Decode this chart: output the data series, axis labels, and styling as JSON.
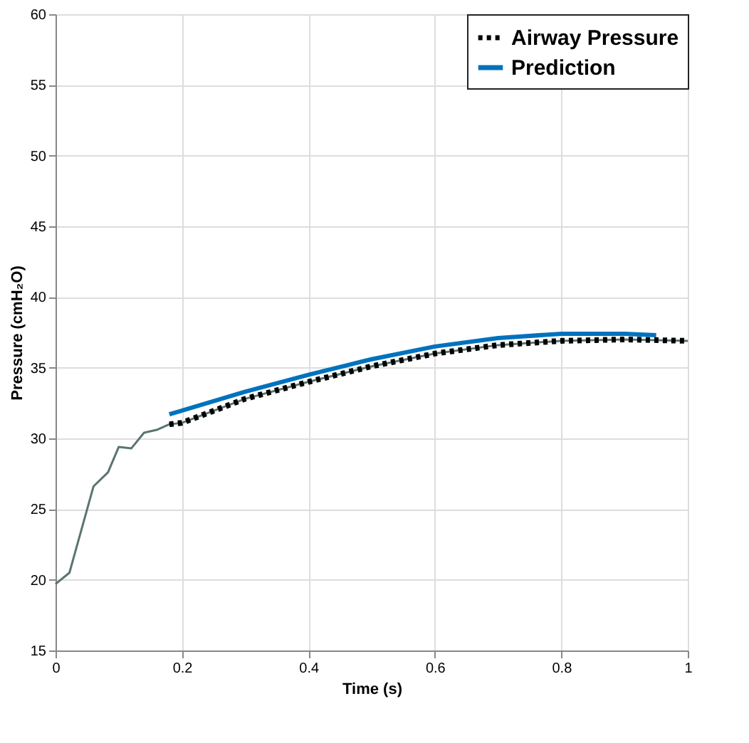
{
  "chart_data": {
    "type": "line",
    "xlabel": "Time (s)",
    "ylabel": "Pressure (cmH₂O)",
    "xlim": [
      0,
      1
    ],
    "xticks": [
      0,
      0.2,
      0.4,
      0.6,
      0.8,
      1
    ],
    "ylim": [
      15,
      60
    ],
    "yticks": [
      15,
      20,
      25,
      30,
      35,
      40,
      45,
      50,
      55,
      60
    ],
    "grid": true,
    "legend": "top right",
    "series": [
      {
        "color": "#5a7472",
        "line_style": "solid",
        "x": [
          0,
          0.022,
          0.06,
          0.083,
          0.1,
          0.12,
          0.14,
          0.16,
          0.18,
          0.2,
          0.3,
          0.4,
          0.5,
          0.6,
          0.7,
          0.8,
          0.9,
          1.0
        ],
        "values": [
          19.7,
          20.5,
          26.6,
          27.6,
          29.4,
          29.3,
          30.4,
          30.6,
          31.0,
          31.1,
          32.8,
          34.0,
          35.1,
          36.0,
          36.6,
          36.9,
          37.0,
          36.9
        ]
      },
      {
        "name": "Airway Pressure",
        "color": "#000000",
        "line_style": "dotted",
        "x": [
          0.18,
          0.2,
          0.3,
          0.4,
          0.5,
          0.6,
          0.7,
          0.8,
          0.9,
          1.0
        ],
        "values": [
          31.0,
          31.1,
          32.8,
          34.0,
          35.1,
          36.0,
          36.6,
          36.9,
          37.0,
          36.9
        ]
      },
      {
        "name": "Prediction",
        "color": "#0072bd",
        "line_style": "solid",
        "x": [
          0.18,
          0.3,
          0.4,
          0.5,
          0.6,
          0.7,
          0.8,
          0.9,
          0.95
        ],
        "values": [
          31.7,
          33.3,
          34.5,
          35.6,
          36.5,
          37.1,
          37.4,
          37.4,
          37.3
        ]
      }
    ]
  }
}
